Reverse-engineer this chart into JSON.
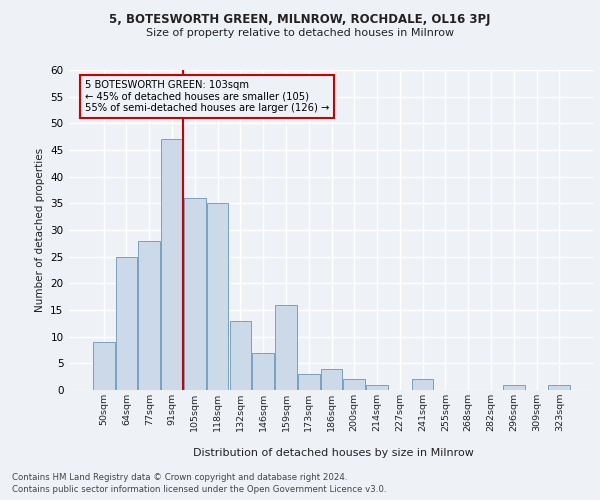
{
  "title1": "5, BOTESWORTH GREEN, MILNROW, ROCHDALE, OL16 3PJ",
  "title2": "Size of property relative to detached houses in Milnrow",
  "xlabel": "Distribution of detached houses by size in Milnrow",
  "ylabel": "Number of detached properties",
  "categories": [
    "50sqm",
    "64sqm",
    "77sqm",
    "91sqm",
    "105sqm",
    "118sqm",
    "132sqm",
    "146sqm",
    "159sqm",
    "173sqm",
    "186sqm",
    "200sqm",
    "214sqm",
    "227sqm",
    "241sqm",
    "255sqm",
    "268sqm",
    "282sqm",
    "296sqm",
    "309sqm",
    "323sqm"
  ],
  "values": [
    9,
    25,
    28,
    47,
    36,
    35,
    13,
    7,
    16,
    3,
    4,
    2,
    1,
    0,
    2,
    0,
    0,
    0,
    1,
    0,
    1
  ],
  "bar_color": "#ccd9e8",
  "bar_edge_color": "#7a9fbf",
  "vline_color": "#cc0000",
  "annotation_box_edge": "#cc0000",
  "annotation_line1": "5 BOTESWORTH GREEN: 103sqm",
  "annotation_line2": "← 45% of detached houses are smaller (105)",
  "annotation_line3": "55% of semi-detached houses are larger (126) →",
  "vline_bar_index": 3.5,
  "ylim": [
    0,
    60
  ],
  "yticks": [
    0,
    5,
    10,
    15,
    20,
    25,
    30,
    35,
    40,
    45,
    50,
    55,
    60
  ],
  "footer1": "Contains HM Land Registry data © Crown copyright and database right 2024.",
  "footer2": "Contains public sector information licensed under the Open Government Licence v3.0.",
  "bg_color": "#eef2f7",
  "grid_color": "#ffffff"
}
